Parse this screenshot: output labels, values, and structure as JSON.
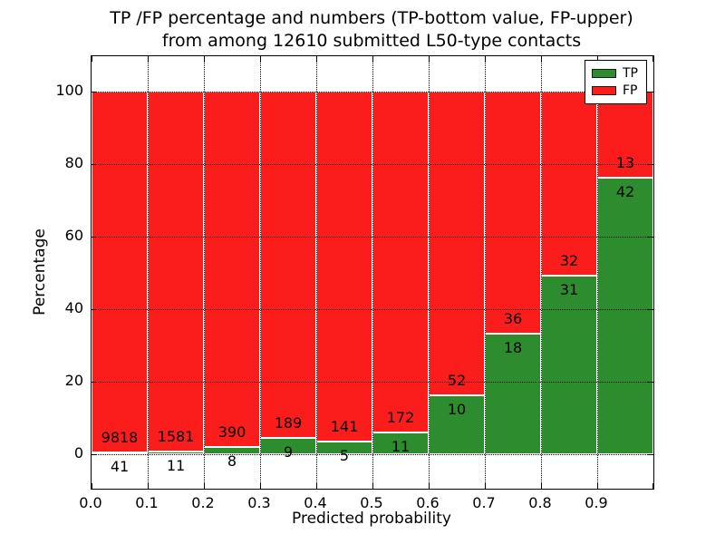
{
  "figure": {
    "title_line1": "TP /FP percentage and numbers (TP-bottom value, FP-upper)",
    "title_line2": "from among 12610 submitted L50-type contacts",
    "xlabel": "Predicted probability",
    "ylabel": "Percentage"
  },
  "legend": {
    "position": "upper right",
    "items": [
      {
        "label": "TP",
        "color": "#2d8c2d"
      },
      {
        "label": "FP",
        "color": "#fb1c1c"
      }
    ]
  },
  "colors": {
    "tp_green": "#2d8c2d",
    "fp_red": "#fb1c1c",
    "background": "#ffffff",
    "grid": "#000000",
    "bar_edge": "#ffffff"
  },
  "chart_data": {
    "type": "bar",
    "stacked": true,
    "title": "TP /FP percentage and numbers (TP-bottom value, FP-upper) from among 12610 submitted L50-type contacts",
    "xlabel": "Predicted probability",
    "ylabel": "Percentage",
    "total_contacts_shown_in_title": 12610,
    "x_bins": [
      "0.0-0.1",
      "0.1-0.2",
      "0.2-0.3",
      "0.3-0.4",
      "0.4-0.5",
      "0.5-0.6",
      "0.6-0.7",
      "0.7-0.8",
      "0.8-0.9",
      "0.9-1.0"
    ],
    "x_tick_labels": [
      "0.0",
      "0.1",
      "0.2",
      "0.3",
      "0.4",
      "0.5",
      "0.6",
      "0.7",
      "0.8",
      "0.9"
    ],
    "y_tick_values": [
      0,
      20,
      40,
      60,
      80,
      100
    ],
    "y_tick_labels": [
      "0",
      "20",
      "40",
      "60",
      "80",
      "100"
    ],
    "xlim": [
      0.0,
      1.0
    ],
    "ylim": [
      -9.5,
      109.75
    ],
    "grid": "dotted, drawn over bars",
    "legend_position": "upper right",
    "bar_unit": "percent of bin; TP + FP stack to 100%",
    "series": [
      {
        "name": "TP",
        "color": "#2d8c2d",
        "counts": [
          41,
          11,
          8,
          9,
          5,
          11,
          10,
          18,
          31,
          42
        ]
      },
      {
        "name": "FP",
        "color": "#fb1c1c",
        "counts": [
          9818,
          1581,
          390,
          189,
          141,
          172,
          52,
          36,
          32,
          13
        ]
      }
    ],
    "tp_percent_of_bin": [
      0.42,
      0.69,
      2.01,
      4.55,
      3.42,
      6.01,
      16.13,
      33.33,
      49.21,
      76.36
    ],
    "fp_percent_of_bin": [
      99.58,
      99.31,
      97.99,
      95.45,
      96.58,
      93.99,
      83.87,
      66.67,
      50.79,
      23.64
    ]
  }
}
